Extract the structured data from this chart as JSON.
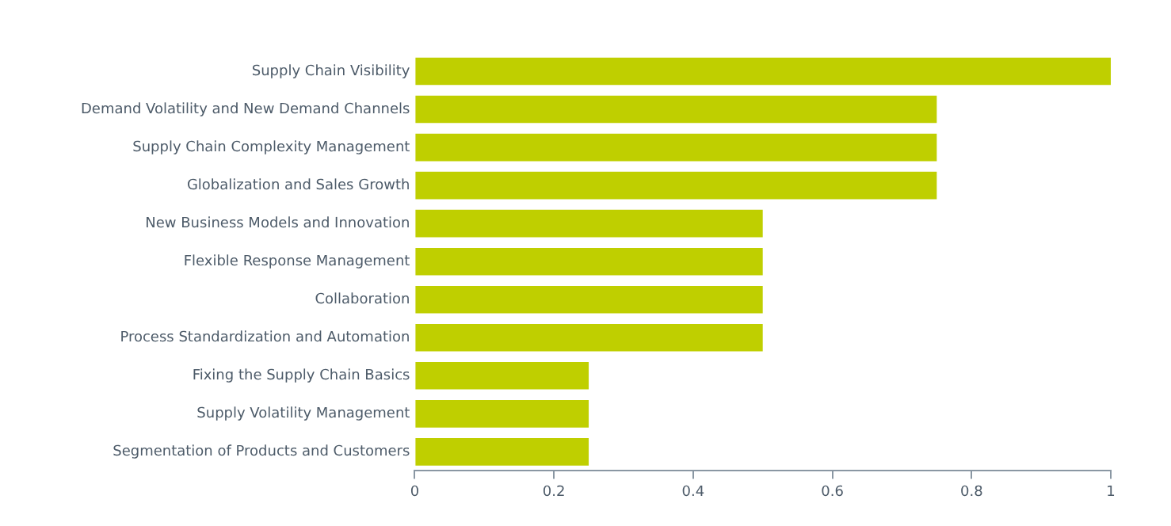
{
  "chart_data": {
    "type": "bar",
    "orientation": "horizontal",
    "categories": [
      "Supply Chain Visibility",
      "Demand Volatility and New Demand Channels",
      "Supply Chain Complexity Management",
      "Globalization and Sales Growth",
      "New Business Models and Innovation",
      "Flexible Response Management",
      "Collaboration",
      "Process Standardization and Automation",
      "Fixing the Supply Chain Basics",
      "Supply Volatility Management",
      "Segmentation of Products and Customers"
    ],
    "values": [
      1,
      0.75,
      0.75,
      0.75,
      0.5,
      0.5,
      0.5,
      0.5,
      0.25,
      0.25,
      0.25
    ],
    "color": "#bfcf00",
    "xlim": [
      0,
      1
    ],
    "xticks": [
      0,
      0.2,
      0.4,
      0.6,
      0.8,
      1
    ],
    "grid": false,
    "legend": false
  }
}
